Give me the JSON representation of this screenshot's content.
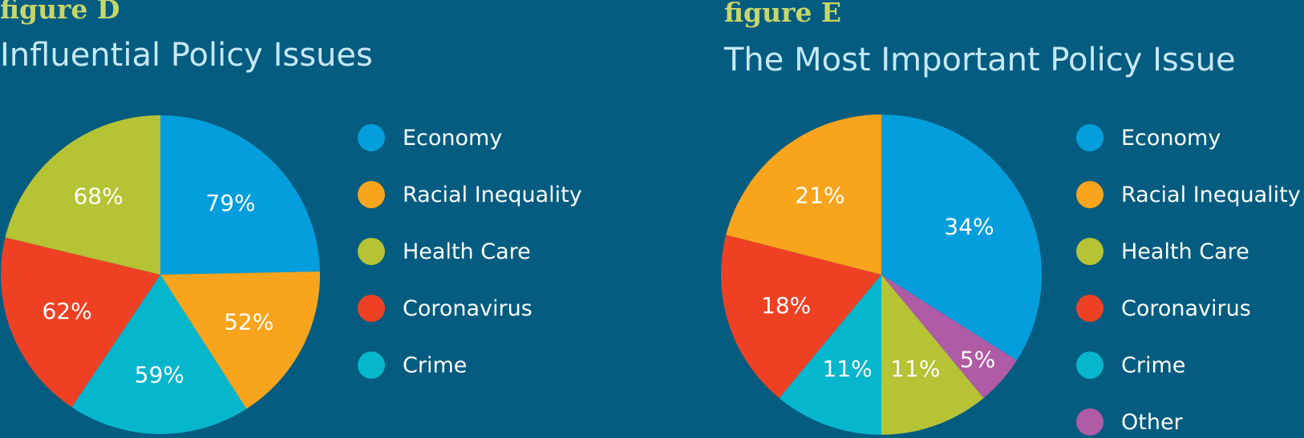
{
  "chart_data": [
    {
      "type": "pie",
      "figure_label": "figure D",
      "title": "Influential Policy Issues",
      "legend_placement": "right",
      "slices": [
        {
          "name": "Economy",
          "value": 79,
          "label": "79%",
          "color": "#039edb"
        },
        {
          "name": "Racial Inequality",
          "value": 52,
          "label": "52%",
          "color": "#f8a41d"
        },
        {
          "name": "Crime",
          "value": 59,
          "label": "59%",
          "color": "#06b6cc"
        },
        {
          "name": "Coronavirus",
          "value": 62,
          "label": "62%",
          "color": "#ee4124"
        },
        {
          "name": "Health Care",
          "value": 68,
          "label": "68%",
          "color": "#b5c334"
        }
      ],
      "legend": [
        {
          "name": "Economy",
          "color": "#039edb"
        },
        {
          "name": "Racial Inequality",
          "color": "#f8a41d"
        },
        {
          "name": "Health Care",
          "color": "#b5c334"
        },
        {
          "name": "Coronavirus",
          "color": "#ee4124"
        },
        {
          "name": "Crime",
          "color": "#06b6cc"
        }
      ]
    },
    {
      "type": "pie",
      "figure_label": "figure E",
      "title": "The Most Important Policy Issue",
      "legend_placement": "right",
      "slices": [
        {
          "name": "Economy",
          "value": 34,
          "label": "34%",
          "color": "#039edb"
        },
        {
          "name": "Other",
          "value": 5,
          "label": "5%",
          "color": "#b05ba5"
        },
        {
          "name": "Health Care",
          "value": 11,
          "label": "11%",
          "color": "#b5c334"
        },
        {
          "name": "Crime",
          "value": 11,
          "label": "11%",
          "color": "#06b6cc"
        },
        {
          "name": "Coronavirus",
          "value": 18,
          "label": "18%",
          "color": "#ee4124"
        },
        {
          "name": "Racial Inequality",
          "value": 21,
          "label": "21%",
          "color": "#f8a41d"
        }
      ],
      "legend": [
        {
          "name": "Economy",
          "color": "#039edb"
        },
        {
          "name": "Racial Inequality",
          "color": "#f8a41d"
        },
        {
          "name": "Health Care",
          "color": "#b5c334"
        },
        {
          "name": "Coronavirus",
          "color": "#ee4124"
        },
        {
          "name": "Crime",
          "color": "#06b6cc"
        },
        {
          "name": "Other",
          "color": "#b05ba5"
        }
      ]
    }
  ]
}
